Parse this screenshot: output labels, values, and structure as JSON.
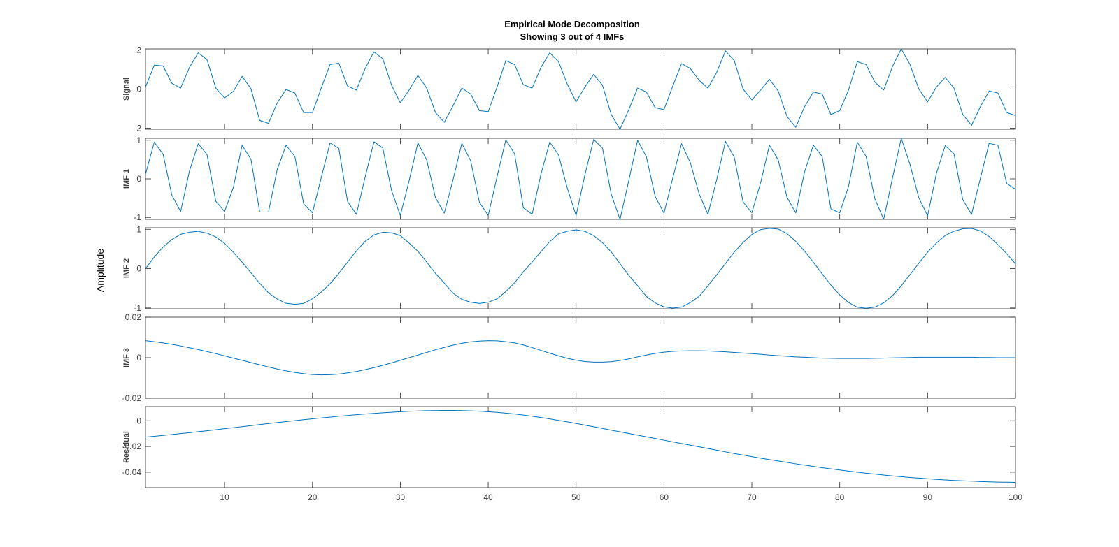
{
  "colors": {
    "line": "#0072BD",
    "axis": "#262626",
    "text": "#404040",
    "background": "#ffffff"
  },
  "chart_data": {
    "type": "line",
    "title": [
      "Empirical Mode Decomposition",
      "Showing 3 out of 4 IMFs"
    ],
    "ylabel": "Amplitude",
    "x": [
      1,
      2,
      3,
      4,
      5,
      6,
      7,
      8,
      9,
      10,
      11,
      12,
      13,
      14,
      15,
      16,
      17,
      18,
      19,
      20,
      21,
      22,
      23,
      24,
      25,
      26,
      27,
      28,
      29,
      30,
      31,
      32,
      33,
      34,
      35,
      36,
      37,
      38,
      39,
      40,
      41,
      42,
      43,
      44,
      45,
      46,
      47,
      48,
      49,
      50,
      51,
      52,
      53,
      54,
      55,
      56,
      57,
      58,
      59,
      60,
      61,
      62,
      63,
      64,
      65,
      66,
      67,
      68,
      69,
      70,
      71,
      72,
      73,
      74,
      75,
      76,
      77,
      78,
      79,
      80,
      81,
      82,
      83,
      84,
      85,
      86,
      87,
      88,
      89,
      90,
      91,
      92,
      93,
      94,
      95,
      96,
      97,
      98,
      99,
      100
    ],
    "xlim": [
      1,
      100
    ],
    "x_ticks": [
      10,
      20,
      30,
      40,
      50,
      60,
      70,
      80,
      90,
      100
    ],
    "grid": false,
    "subplots": [
      {
        "name": "Signal",
        "ylim": [
          -2.05,
          2.05
        ],
        "y_ticks": [
          -2,
          0,
          2
        ],
        "values": [
          0.1,
          1.22,
          1.18,
          0.3,
          0.05,
          1.1,
          1.85,
          1.5,
          0.05,
          -0.45,
          -0.12,
          0.65,
          0.02,
          -1.6,
          -1.75,
          -0.7,
          -0.02,
          -0.2,
          -1.2,
          -1.2,
          0.05,
          1.25,
          1.32,
          0.15,
          -0.05,
          1.05,
          1.9,
          1.55,
          0.2,
          -0.7,
          -0.05,
          0.7,
          0.05,
          -1.2,
          -1.7,
          -0.85,
          0.05,
          -0.25,
          -1.1,
          -1.15,
          0.1,
          1.45,
          1.25,
          0.22,
          0.05,
          1.1,
          1.85,
          1.4,
          0.25,
          -0.65,
          0.1,
          0.75,
          0.2,
          -1.3,
          -2.05,
          -1.05,
          0.05,
          -0.15,
          -0.95,
          -1.05,
          0.15,
          1.3,
          1.05,
          0.45,
          0.05,
          0.85,
          1.95,
          1.45,
          0.0,
          -0.55,
          -0.05,
          0.5,
          -0.1,
          -1.4,
          -1.95,
          -0.9,
          -0.15,
          -0.25,
          -1.3,
          -1.1,
          -0.05,
          1.4,
          1.25,
          0.35,
          -0.05,
          1.15,
          2.05,
          1.25,
          0.0,
          -0.65,
          0.1,
          0.6,
          0.05,
          -1.3,
          -1.85,
          -0.9,
          -0.1,
          -0.2,
          -1.2,
          -1.35
        ]
      },
      {
        "name": "IMF 1",
        "ylim": [
          -1.05,
          1.05
        ],
        "y_ticks": [
          -1,
          0,
          1
        ],
        "values": [
          0.12,
          0.95,
          0.64,
          -0.42,
          -0.85,
          0.2,
          0.91,
          0.63,
          -0.58,
          -0.85,
          -0.22,
          0.87,
          0.51,
          -0.86,
          -0.86,
          0.25,
          0.87,
          0.58,
          -0.65,
          -0.88,
          0.03,
          0.93,
          0.79,
          -0.59,
          -0.92,
          0.05,
          0.96,
          0.8,
          -0.3,
          -0.95,
          -0.05,
          0.93,
          0.49,
          -0.49,
          -0.89,
          -0.02,
          0.92,
          0.47,
          -0.61,
          -0.95,
          0.05,
          1.01,
          0.65,
          -0.75,
          -0.92,
          0.12,
          0.95,
          0.62,
          -0.24,
          -0.95,
          0.1,
          1.02,
          0.8,
          -0.4,
          -1.05,
          -0.04,
          1.0,
          0.57,
          -0.46,
          -0.89,
          0.02,
          0.91,
          0.42,
          -0.39,
          -0.92,
          -0.02,
          0.97,
          0.56,
          -0.6,
          -0.88,
          -0.1,
          0.87,
          0.49,
          -0.48,
          -0.88,
          0.18,
          0.87,
          0.58,
          -0.78,
          -0.88,
          -0.2,
          0.95,
          0.58,
          -0.52,
          -1.05,
          0.02,
          1.05,
          0.37,
          -0.49,
          -0.96,
          0.14,
          0.86,
          0.65,
          -0.54,
          -0.92,
          0.01,
          0.92,
          0.87,
          -0.12,
          -0.27
        ]
      },
      {
        "name": "IMF 2",
        "ylim": [
          -1.02,
          1.04
        ],
        "y_ticks": [
          -1,
          0,
          1
        ],
        "values": [
          0,
          0.296,
          0.549,
          0.741,
          0.874,
          0.927,
          0.95,
          0.903,
          0.808,
          0.644,
          0.418,
          0.165,
          -0.104,
          -0.373,
          -0.616,
          -0.775,
          -0.881,
          -0.906,
          -0.882,
          -0.765,
          -0.596,
          -0.383,
          -0.123,
          0.169,
          0.448,
          0.697,
          0.858,
          0.926,
          0.911,
          0.84,
          0.651,
          0.44,
          0.166,
          -0.121,
          -0.366,
          -0.623,
          -0.78,
          -0.854,
          -0.885,
          -0.854,
          -0.768,
          -0.582,
          -0.36,
          -0.077,
          0.169,
          0.431,
          0.688,
          0.885,
          0.951,
          0.987,
          0.949,
          0.842,
          0.661,
          0.425,
          0.126,
          -0.171,
          -0.43,
          -0.708,
          -0.87,
          -0.971,
          -1.003,
          -0.979,
          -0.864,
          -0.704,
          -0.437,
          -0.155,
          0.13,
          0.421,
          0.666,
          0.87,
          0.994,
          1.025,
          1.006,
          0.892,
          0.694,
          0.443,
          0.164,
          -0.134,
          -0.418,
          -0.667,
          -0.862,
          -0.981,
          -1.006,
          -0.977,
          -0.871,
          -0.687,
          -0.436,
          -0.15,
          0.138,
          0.419,
          0.653,
          0.843,
          0.952,
          1.014,
          1.022,
          0.962,
          0.815,
          0.613,
          0.38,
          0.122
        ]
      },
      {
        "name": "IMF 3",
        "ylim": [
          -0.02,
          0.02
        ],
        "y_ticks": [
          -0.02,
          0,
          0.02
        ],
        "values": [
          0.0084,
          0.0079,
          0.0073,
          0.0066,
          0.0058,
          0.0049,
          0.004,
          0.003,
          0.002,
          0.0009,
          -0.0002,
          -0.0013,
          -0.0024,
          -0.0035,
          -0.0046,
          -0.0056,
          -0.0065,
          -0.0073,
          -0.0079,
          -0.0083,
          -0.0085,
          -0.0084,
          -0.0081,
          -0.0075,
          -0.0068,
          -0.0059,
          -0.0049,
          -0.0038,
          -0.0026,
          -0.0013,
          0.0,
          0.0013,
          0.0026,
          0.0039,
          0.0051,
          0.0062,
          0.0071,
          0.0078,
          0.0082,
          0.0084,
          0.0083,
          0.0079,
          0.0073,
          0.0063,
          0.005,
          0.0036,
          0.0022,
          0.0009,
          -0.0003,
          -0.0012,
          -0.0019,
          -0.0022,
          -0.0022,
          -0.002,
          -0.0014,
          -0.0006,
          0.0004,
          0.0013,
          0.0021,
          0.0027,
          0.0031,
          0.0033,
          0.0034,
          0.0034,
          0.0033,
          0.0031,
          0.0029,
          0.0026,
          0.0023,
          0.002,
          0.0017,
          0.0013,
          0.001,
          0.0007,
          0.0004,
          0.0002,
          0.0,
          -0.0002,
          -0.0003,
          -0.0004,
          -0.0004,
          -0.0004,
          -0.0004,
          -0.0003,
          -0.0002,
          -0.0001,
          0.0,
          0.0001,
          0.0002,
          0.0002,
          0.0002,
          0.0002,
          0.0002,
          0.0002,
          0.0002,
          0.0001,
          0.0001,
          0.0,
          0.0,
          0.0
        ]
      },
      {
        "name": "Residual",
        "ylim": [
          -0.052,
          0.011
        ],
        "y_ticks": [
          -0.04,
          -0.02,
          0
        ],
        "values": [
          -0.0127,
          -0.0121,
          -0.0114,
          -0.0107,
          -0.01,
          -0.0093,
          -0.0085,
          -0.0078,
          -0.007,
          -0.0062,
          -0.0054,
          -0.0046,
          -0.0038,
          -0.003,
          -0.0022,
          -0.0014,
          -0.0007,
          0.0001,
          0.0008,
          0.0015,
          0.0022,
          0.0028,
          0.0035,
          0.0041,
          0.0047,
          0.0052,
          0.0057,
          0.0062,
          0.0066,
          0.007,
          0.0073,
          0.0076,
          0.0078,
          0.0079,
          0.008,
          0.008,
          0.0079,
          0.0077,
          0.0074,
          0.007,
          0.0065,
          0.0059,
          0.0052,
          0.0044,
          0.0035,
          0.0025,
          0.0014,
          0.0003,
          -0.0009,
          -0.0021,
          -0.0034,
          -0.0047,
          -0.006,
          -0.0073,
          -0.0086,
          -0.0099,
          -0.0112,
          -0.0125,
          -0.0138,
          -0.0151,
          -0.0164,
          -0.0177,
          -0.019,
          -0.0203,
          -0.0216,
          -0.0229,
          -0.0242,
          -0.0255,
          -0.0267,
          -0.0279,
          -0.0291,
          -0.0302,
          -0.0313,
          -0.0324,
          -0.0335,
          -0.0345,
          -0.0355,
          -0.0365,
          -0.0374,
          -0.0383,
          -0.0392,
          -0.04,
          -0.0408,
          -0.0415,
          -0.0422,
          -0.0429,
          -0.0435,
          -0.0441,
          -0.0446,
          -0.0451,
          -0.0456,
          -0.046,
          -0.0464,
          -0.0467,
          -0.047,
          -0.0473,
          -0.0475,
          -0.0477,
          -0.0478,
          -0.0479
        ]
      }
    ]
  }
}
